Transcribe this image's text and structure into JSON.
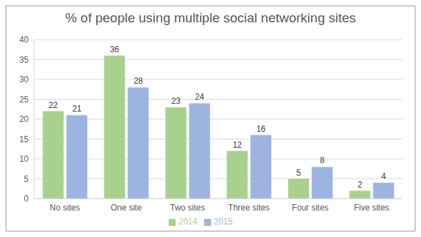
{
  "chart_data": {
    "type": "bar",
    "title": "% of people using multiple social networking sites",
    "categories": [
      "No sites",
      "One site",
      "Two sites",
      "Three sites",
      "Four sites",
      "Five sites"
    ],
    "series": [
      {
        "name": "2014",
        "color": "#a9d18e",
        "values": [
          22,
          36,
          23,
          12,
          5,
          2
        ]
      },
      {
        "name": "2015",
        "color": "#9db4e2",
        "values": [
          21,
          28,
          24,
          16,
          8,
          4
        ]
      }
    ],
    "ylim": [
      0,
      40
    ],
    "yticks": [
      0,
      5,
      10,
      15,
      20,
      25,
      30,
      35,
      40
    ],
    "grid": true,
    "data_labels": true,
    "legend": "bottom"
  }
}
